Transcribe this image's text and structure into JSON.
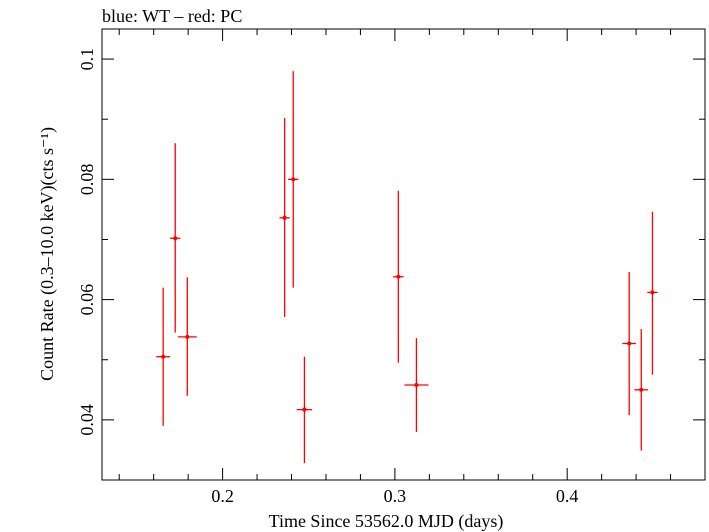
{
  "chart_data": {
    "type": "scatter",
    "title": "blue: WT – red: PC",
    "xlabel": "Time Since 53562.0 MJD (days)",
    "ylabel": "Count Rate (0.3–10.0 keV)(cts s⁻¹)",
    "xlim": [
      0.13,
      0.48
    ],
    "ylim": [
      0.03,
      0.105
    ],
    "x_ticks": [
      0.2,
      0.3,
      0.4
    ],
    "x_tick_labels": [
      "0.2",
      "0.3",
      "0.4"
    ],
    "y_ticks": [
      0.04,
      0.06,
      0.08,
      0.1
    ],
    "y_tick_labels": [
      "0.04",
      "0.06",
      "0.08",
      "0.1"
    ],
    "grid": false,
    "series": [
      {
        "name": "PC",
        "color": "#ff0000",
        "points": [
          {
            "x": 0.1655,
            "xerr": 0.004,
            "y": 0.0505,
            "ylo": 0.039,
            "yhi": 0.062
          },
          {
            "x": 0.1725,
            "xerr": 0.003,
            "y": 0.0702,
            "ylo": 0.0545,
            "yhi": 0.086
          },
          {
            "x": 0.1795,
            "xerr": 0.0055,
            "y": 0.0538,
            "ylo": 0.044,
            "yhi": 0.0637
          },
          {
            "x": 0.236,
            "xerr": 0.003,
            "y": 0.0736,
            "ylo": 0.0571,
            "yhi": 0.0902
          },
          {
            "x": 0.241,
            "xerr": 0.003,
            "y": 0.08,
            "ylo": 0.062,
            "yhi": 0.098
          },
          {
            "x": 0.2475,
            "xerr": 0.0045,
            "y": 0.0417,
            "ylo": 0.0328,
            "yhi": 0.0505
          },
          {
            "x": 0.302,
            "xerr": 0.003,
            "y": 0.0638,
            "ylo": 0.0495,
            "yhi": 0.0781
          },
          {
            "x": 0.3125,
            "xerr": 0.007,
            "y": 0.0458,
            "ylo": 0.038,
            "yhi": 0.0536
          },
          {
            "x": 0.436,
            "xerr": 0.004,
            "y": 0.0527,
            "ylo": 0.0408,
            "yhi": 0.0646
          },
          {
            "x": 0.443,
            "xerr": 0.004,
            "y": 0.045,
            "ylo": 0.0349,
            "yhi": 0.0551
          },
          {
            "x": 0.4495,
            "xerr": 0.003,
            "y": 0.0612,
            "ylo": 0.0475,
            "yhi": 0.0746
          }
        ]
      }
    ]
  }
}
